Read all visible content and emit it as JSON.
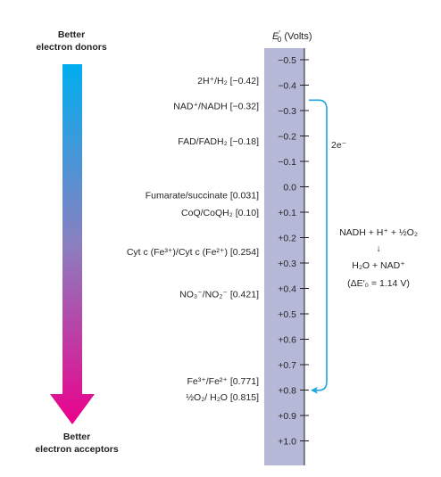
{
  "header": {
    "left_top_line1": "Better",
    "left_top_line2": "electron donors",
    "left_bottom_line1": "Better",
    "left_bottom_line2": "electron acceptors",
    "axis_title_main": "E",
    "axis_title_super": "′",
    "axis_title_sub": "0",
    "axis_title_unit": " (Volts)"
  },
  "scale": {
    "ticks": [
      "−0.5",
      "−0.4",
      "−0.3",
      "−0.2",
      "−0.1",
      "0.0",
      "+0.1",
      "+0.2",
      "+0.3",
      "+0.4",
      "+0.5",
      "+0.6",
      "+0.7",
      "+0.8",
      "+0.9",
      "+1.0"
    ],
    "tick_values": [
      -0.5,
      -0.4,
      -0.3,
      -0.2,
      -0.1,
      0.0,
      0.1,
      0.2,
      0.3,
      0.4,
      0.5,
      0.6,
      0.7,
      0.8,
      0.9,
      1.0
    ]
  },
  "couples": [
    {
      "label": "2H⁺/H₂ [−0.42]",
      "value": -0.42
    },
    {
      "label": "NAD⁺/NADH [−0.32]",
      "value": -0.32
    },
    {
      "label": "FAD/FADH₂ [−0.18]",
      "value": -0.18
    },
    {
      "label": "Fumarate/succinate [0.031]",
      "value": 0.031
    },
    {
      "label": "CoQ/CoQH₂ [0.10]",
      "value": 0.1
    },
    {
      "label": "Cyt c (Fe³⁺)/Cyt c (Fe²⁺) [0.254]",
      "value": 0.254
    },
    {
      "label": "NO₃⁻/NO₂⁻ [0.421]",
      "value": 0.421
    },
    {
      "label": "Fe³⁺/Fe²⁺ [0.771]",
      "value": 0.771
    },
    {
      "label": "½O₂/ H₂O [0.815]",
      "value": 0.815
    }
  ],
  "transfer": {
    "from_value": -0.32,
    "to_value": 0.815,
    "electrons": "2e⁻",
    "reaction_line1": "NADH + H⁺ + ½O₂",
    "reaction_arrow": "↓",
    "reaction_line2": "H₂O + NAD⁺",
    "reaction_line3": "(ΔE′₀ = 1.14 V)"
  },
  "colors": {
    "arrow_top": "#00aeef",
    "arrow_middle": "#8a7fc0",
    "arrow_bottom": "#ec008c",
    "scale_bar": "#b5b8d6",
    "transfer_arrow": "#1ba6e3"
  }
}
